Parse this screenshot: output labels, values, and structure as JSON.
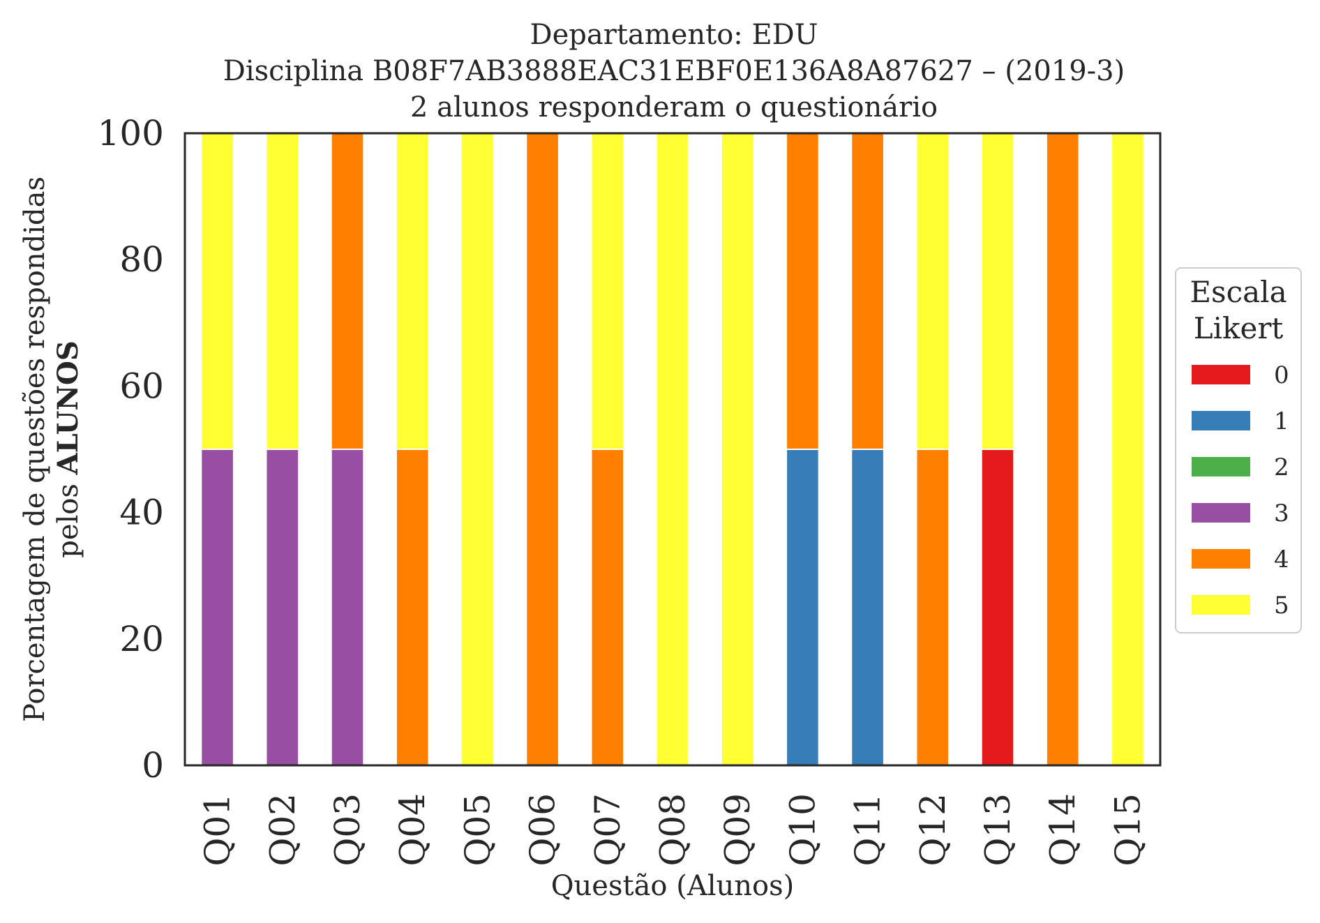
{
  "chart_data": {
    "type": "bar",
    "stacked": true,
    "title_lines": [
      "Departamento: EDU",
      "Disciplina B08F7AB3888EAC31EBF0E136A8A87627 – (2019-3)",
      "2 alunos responderam o questionário"
    ],
    "xlabel": "Questão (Alunos)",
    "ylabel_line1": "Porcentagem de questões respondidas",
    "ylabel_line2_prefix": "pelos ",
    "ylabel_line2_bold": "ALUNOS",
    "ylim": [
      0,
      100
    ],
    "yticks": [
      0,
      20,
      40,
      60,
      80,
      100
    ],
    "grid": false,
    "categories": [
      "Q01",
      "Q02",
      "Q03",
      "Q04",
      "Q05",
      "Q06",
      "Q07",
      "Q08",
      "Q09",
      "Q10",
      "Q11",
      "Q12",
      "Q13",
      "Q14",
      "Q15"
    ],
    "legend": {
      "title_lines": [
        "Escala",
        "Likert"
      ],
      "placement": "center-right outside"
    },
    "series": [
      {
        "name": "0",
        "color": "#e41a1c",
        "values": [
          0,
          0,
          0,
          0,
          0,
          0,
          0,
          0,
          0,
          0,
          0,
          0,
          50,
          0,
          0
        ]
      },
      {
        "name": "1",
        "color": "#377eb8",
        "values": [
          0,
          0,
          0,
          0,
          0,
          0,
          0,
          0,
          0,
          50,
          50,
          0,
          0,
          0,
          0
        ]
      },
      {
        "name": "2",
        "color": "#4daf4a",
        "values": [
          0,
          0,
          0,
          0,
          0,
          0,
          0,
          0,
          0,
          0,
          0,
          0,
          0,
          0,
          0
        ]
      },
      {
        "name": "3",
        "color": "#984ea3",
        "values": [
          50,
          50,
          50,
          0,
          0,
          0,
          0,
          0,
          0,
          0,
          0,
          0,
          0,
          0,
          0
        ]
      },
      {
        "name": "4",
        "color": "#ff7f00",
        "values": [
          0,
          0,
          50,
          50,
          0,
          100,
          50,
          0,
          0,
          50,
          50,
          50,
          0,
          100,
          0
        ]
      },
      {
        "name": "5",
        "color": "#ffff33",
        "values": [
          50,
          50,
          0,
          50,
          100,
          0,
          50,
          100,
          100,
          0,
          0,
          50,
          50,
          0,
          100
        ]
      }
    ]
  }
}
